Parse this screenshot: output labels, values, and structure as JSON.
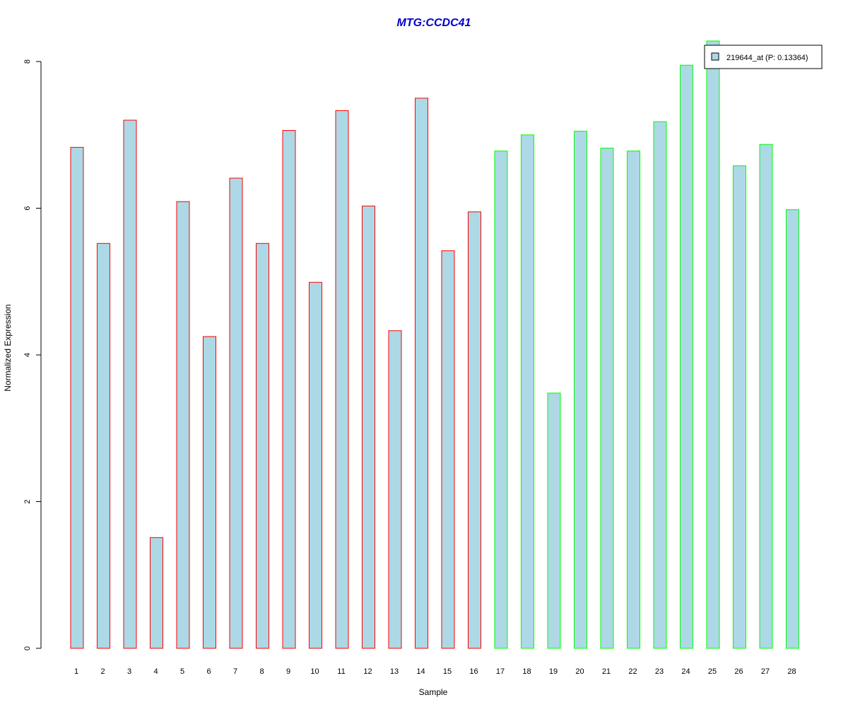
{
  "chart_data": {
    "type": "bar",
    "title": "MTG:CCDC41",
    "xlabel": "Sample",
    "ylabel": "Normalized Expression",
    "categories": [
      "1",
      "2",
      "3",
      "4",
      "5",
      "6",
      "7",
      "8",
      "9",
      "10",
      "11",
      "12",
      "13",
      "14",
      "15",
      "16",
      "17",
      "18",
      "19",
      "20",
      "21",
      "22",
      "23",
      "24",
      "25",
      "26",
      "27",
      "28"
    ],
    "series": [
      {
        "name": "219644_at (P: 0.13364)",
        "values": [
          6.83,
          5.52,
          7.2,
          1.51,
          6.09,
          4.25,
          6.41,
          5.52,
          7.06,
          4.99,
          7.33,
          6.03,
          4.33,
          7.5,
          5.42,
          5.95,
          6.78,
          7.0,
          3.48,
          7.05,
          6.82,
          6.78,
          7.18,
          7.95,
          8.28,
          6.58,
          6.87,
          5.98
        ]
      }
    ],
    "group_a_samples": 16,
    "ylim": [
      0,
      8
    ],
    "yticks": [
      0,
      2,
      4,
      6,
      8
    ],
    "grid": false,
    "legend_position": "top-right",
    "colors": {
      "bar_fill": "#add8e6",
      "group_a_border": "#ff0000",
      "group_b_border": "#00ff00",
      "title": "#0000cc"
    }
  }
}
